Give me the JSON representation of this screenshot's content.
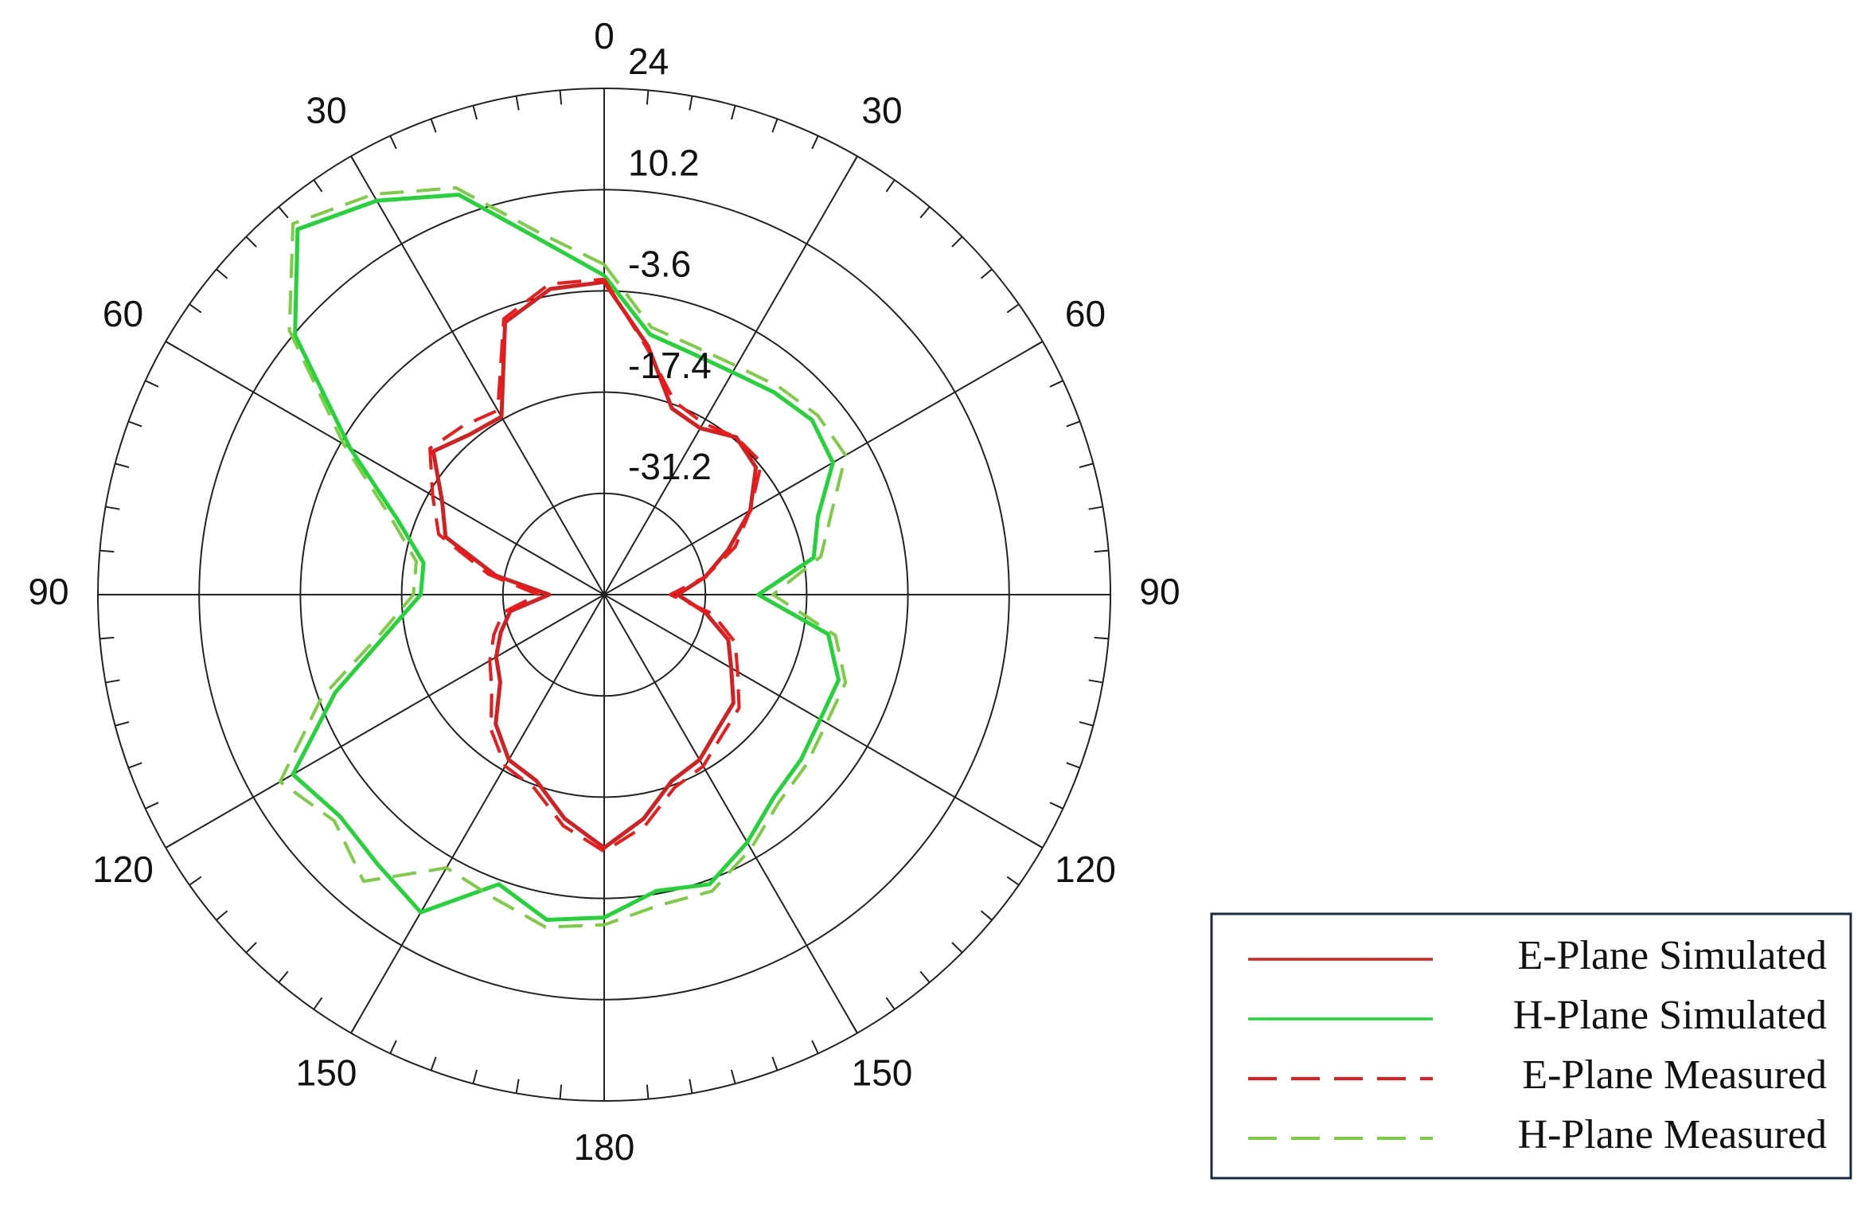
{
  "chart_data": {
    "type": "polar",
    "x": [
      0,
      10,
      20,
      30,
      40,
      50,
      60,
      70,
      80,
      90,
      100,
      110,
      120,
      130,
      140,
      150,
      160,
      170,
      180,
      190,
      200,
      210,
      220,
      230,
      240,
      250,
      260,
      270,
      280,
      290,
      300,
      310,
      320,
      330,
      340,
      350,
      360
    ],
    "xticks": [
      0,
      30,
      60,
      90,
      120,
      150,
      180,
      {
        "value": 210,
        "label": "150"
      },
      {
        "value": 240,
        "label": "120"
      },
      {
        "value": 270,
        "label": "90"
      },
      {
        "value": 300,
        "label": "60"
      },
      {
        "value": 330,
        "label": "30"
      }
    ],
    "ylim": [
      -45,
      24
    ],
    "yticks": [
      -31.2,
      -17.4,
      -3.6,
      10.2,
      24
    ],
    "grid": true,
    "legend": "lower right",
    "series": [
      {
        "name": "E-Plane Simulated",
        "color": "#d42020",
        "dashed": false,
        "values": [
          -2.4,
          -10.6,
          -18,
          -18.8,
          -17,
          -18,
          -22,
          -27,
          -31,
          -35,
          -31,
          -27,
          -25,
          -22,
          -21,
          -19,
          -18,
          -14,
          -10.5,
          -14,
          -18,
          -19,
          -22,
          -26.5,
          -28,
          -30,
          -32,
          -37.5,
          -30,
          -22,
          -19.5,
          -14.6,
          -16.5,
          -17,
          -5.5,
          -2.7,
          -2.4
        ]
      },
      {
        "name": "H-Plane Simulated",
        "color": "#22d438",
        "dashed": false,
        "values": [
          -1.5,
          -9,
          -10,
          -10,
          -9,
          -8,
          -9,
          -14,
          -16,
          -24,
          -14,
          -11,
          -11,
          -10,
          -9,
          -6,
          -3,
          -4,
          -1,
          0,
          -3,
          5,
          3,
          2,
          4,
          -6,
          -15,
          -20,
          -20,
          -15,
          -5,
          10,
          20,
          17,
          13,
          4,
          -1.5
        ]
      },
      {
        "name": "E-Plane Measured",
        "color": "#f01818",
        "dashed": true,
        "values": [
          -2,
          -11,
          -17,
          -18,
          -17,
          -17,
          -22,
          -26,
          -31,
          -36,
          -30,
          -26,
          -24,
          -21,
          -20,
          -18,
          -17,
          -13,
          -10,
          -13,
          -17,
          -18,
          -21,
          -25,
          -27,
          -29,
          -31,
          -36,
          -29,
          -21,
          -18,
          -14,
          -15,
          -16,
          -5,
          -2,
          -2
        ]
      },
      {
        "name": "H-Plane Measured",
        "color": "#7ccc44",
        "dashed": true,
        "values": [
          0,
          -8,
          -9,
          -9,
          -8,
          -7,
          -7,
          -12,
          -15,
          -22,
          -13,
          -10,
          -10,
          -9,
          -8,
          -5,
          -2,
          -2,
          0,
          1,
          -1,
          -2,
          6,
          3,
          6,
          -4,
          -14,
          -19,
          -19,
          -14,
          -4,
          11,
          21,
          18,
          14,
          5,
          0
        ]
      }
    ]
  }
}
